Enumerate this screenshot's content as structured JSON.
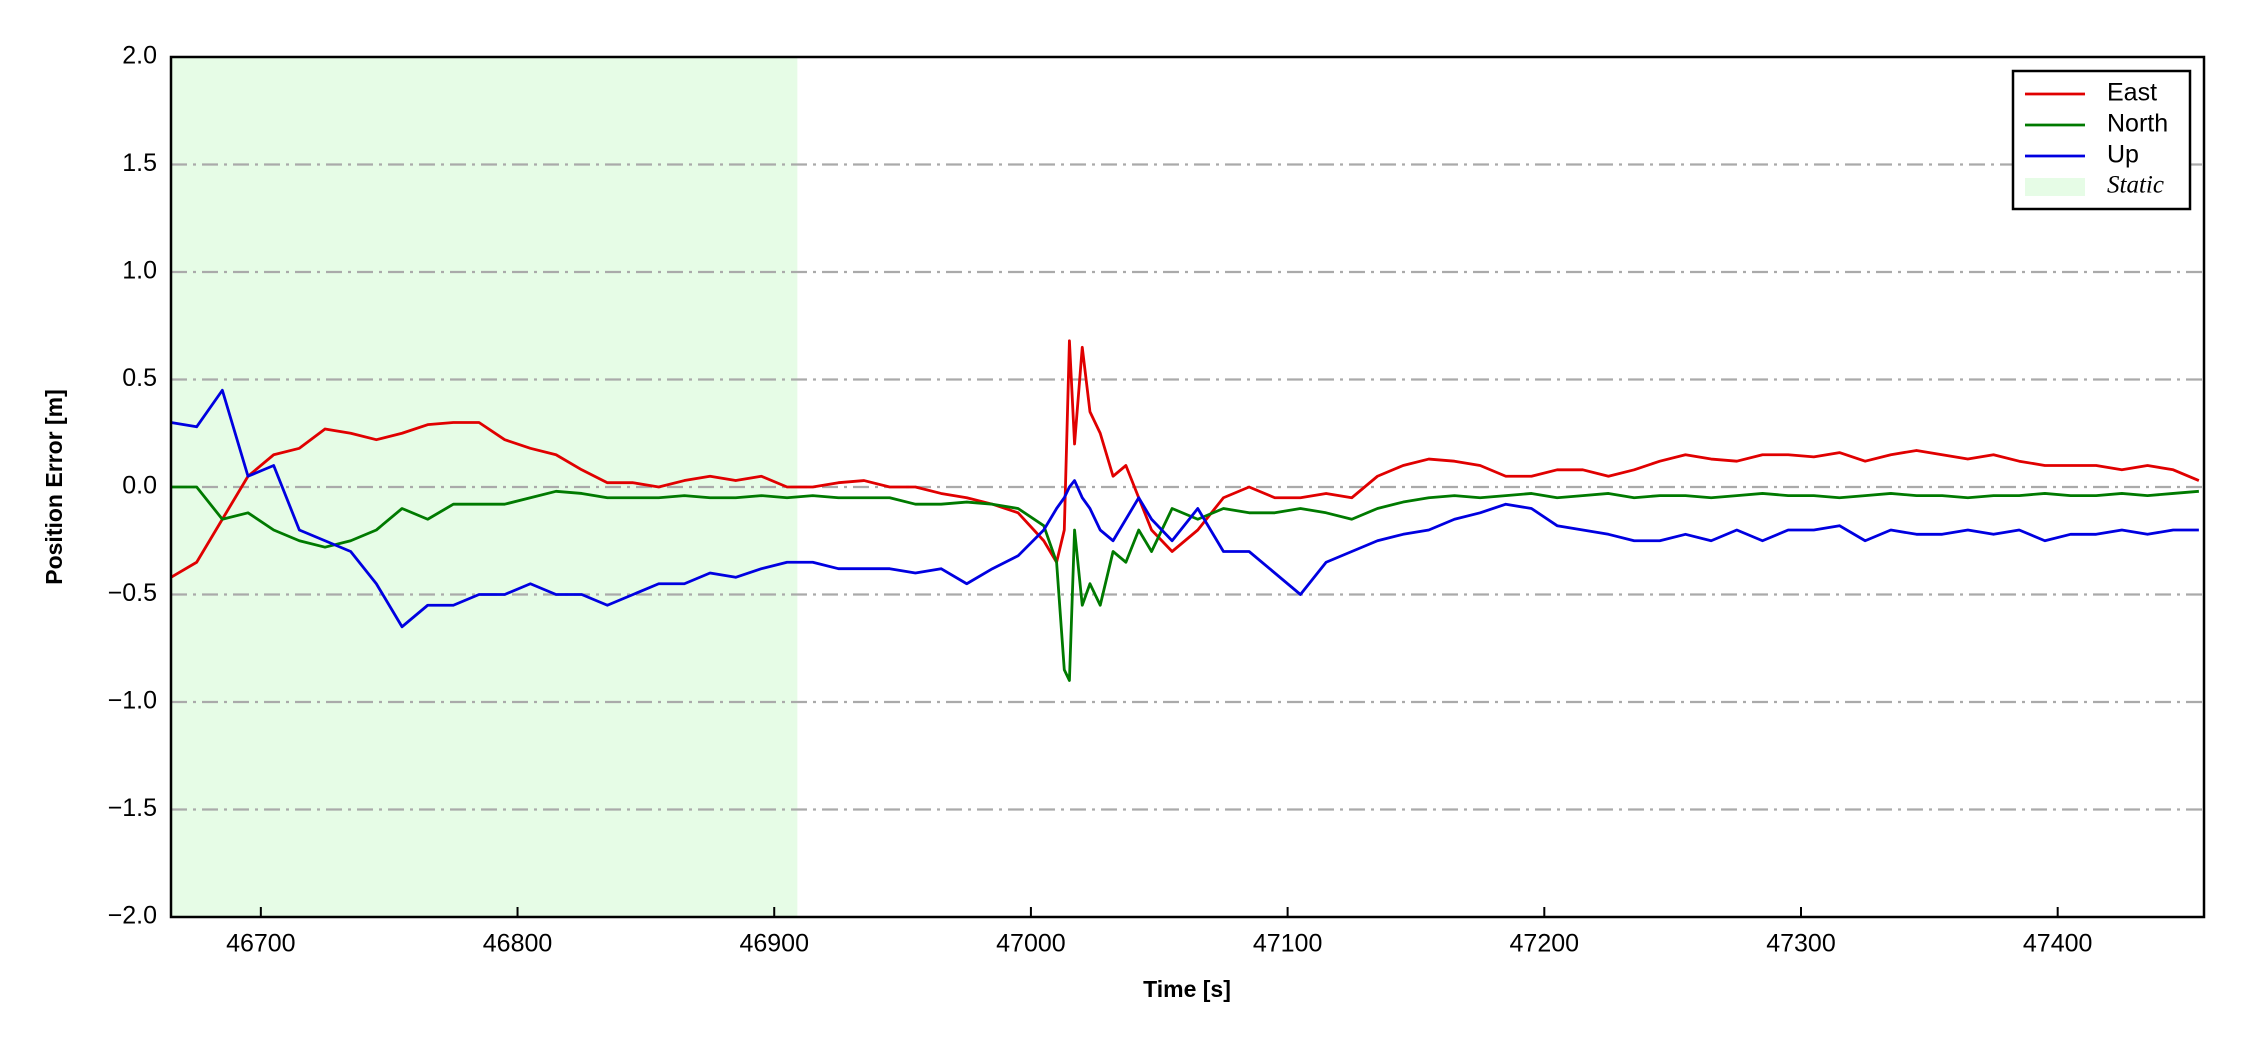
{
  "chart_data": {
    "type": "line",
    "xlabel": "Time [s]",
    "ylabel": "Position Error [m]",
    "xlim": [
      46665,
      47457
    ],
    "ylim": [
      -2.0,
      2.0
    ],
    "xticks": [
      46700,
      46800,
      46900,
      47000,
      47100,
      47200,
      47300,
      47400
    ],
    "yticks": [
      {
        "value": -2.0,
        "label": "−2.0"
      },
      {
        "value": -1.5,
        "label": "−1.5"
      },
      {
        "value": -1.0,
        "label": "−1.0"
      },
      {
        "value": -0.5,
        "label": "−0.5"
      },
      {
        "value": 0.0,
        "label": "0.0"
      },
      {
        "value": 0.5,
        "label": "0.5"
      },
      {
        "value": 1.0,
        "label": "1.0"
      },
      {
        "value": 1.5,
        "label": "1.5"
      },
      {
        "value": 2.0,
        "label": "2.0"
      }
    ],
    "grid": "y",
    "legend": "upper right",
    "span": {
      "name": "Static",
      "x0": 46665,
      "x1": 46909,
      "color": "#e6fce6"
    },
    "x": [
      46665,
      46675,
      46685,
      46695,
      46705,
      46715,
      46725,
      46735,
      46745,
      46755,
      46765,
      46775,
      46785,
      46795,
      46805,
      46815,
      46825,
      46835,
      46845,
      46855,
      46865,
      46875,
      46885,
      46895,
      46905,
      46915,
      46925,
      46935,
      46945,
      46955,
      46965,
      46975,
      46985,
      46995,
      47005,
      47010,
      47013,
      47015,
      47017,
      47020,
      47023,
      47027,
      47032,
      47037,
      47042,
      47047,
      47055,
      47065,
      47075,
      47085,
      47095,
      47105,
      47115,
      47125,
      47135,
      47145,
      47155,
      47165,
      47175,
      47185,
      47195,
      47205,
      47215,
      47225,
      47235,
      47245,
      47255,
      47265,
      47275,
      47285,
      47295,
      47305,
      47315,
      47325,
      47335,
      47345,
      47355,
      47365,
      47375,
      47385,
      47395,
      47405,
      47415,
      47425,
      47435,
      47445,
      47455
    ],
    "series": [
      {
        "name": "East",
        "color": "#e00000",
        "values": [
          -0.42,
          -0.35,
          -0.15,
          0.05,
          0.15,
          0.18,
          0.27,
          0.25,
          0.22,
          0.25,
          0.29,
          0.3,
          0.3,
          0.22,
          0.18,
          0.15,
          0.08,
          0.02,
          0.02,
          0.0,
          0.03,
          0.05,
          0.03,
          0.05,
          0.0,
          0.0,
          0.02,
          0.03,
          0.0,
          0.0,
          -0.03,
          -0.05,
          -0.08,
          -0.12,
          -0.25,
          -0.35,
          -0.2,
          0.68,
          0.2,
          0.65,
          0.35,
          0.25,
          0.05,
          0.1,
          -0.05,
          -0.2,
          -0.3,
          -0.2,
          -0.05,
          0.0,
          -0.05,
          -0.05,
          -0.03,
          -0.05,
          0.05,
          0.1,
          0.13,
          0.12,
          0.1,
          0.05,
          0.05,
          0.08,
          0.08,
          0.05,
          0.08,
          0.12,
          0.15,
          0.13,
          0.12,
          0.15,
          0.15,
          0.14,
          0.16,
          0.12,
          0.15,
          0.17,
          0.15,
          0.13,
          0.15,
          0.12,
          0.1,
          0.1,
          0.1,
          0.08,
          0.1,
          0.08,
          0.03
        ]
      },
      {
        "name": "North",
        "color": "#007a00",
        "values": [
          0.0,
          0.0,
          -0.15,
          -0.12,
          -0.2,
          -0.25,
          -0.28,
          -0.25,
          -0.2,
          -0.1,
          -0.15,
          -0.08,
          -0.08,
          -0.08,
          -0.05,
          -0.02,
          -0.03,
          -0.05,
          -0.05,
          -0.05,
          -0.04,
          -0.05,
          -0.05,
          -0.04,
          -0.05,
          -0.04,
          -0.05,
          -0.05,
          -0.05,
          -0.08,
          -0.08,
          -0.07,
          -0.08,
          -0.1,
          -0.18,
          -0.35,
          -0.85,
          -0.9,
          -0.2,
          -0.55,
          -0.45,
          -0.55,
          -0.3,
          -0.35,
          -0.2,
          -0.3,
          -0.1,
          -0.15,
          -0.1,
          -0.12,
          -0.12,
          -0.1,
          -0.12,
          -0.15,
          -0.1,
          -0.07,
          -0.05,
          -0.04,
          -0.05,
          -0.04,
          -0.03,
          -0.05,
          -0.04,
          -0.03,
          -0.05,
          -0.04,
          -0.04,
          -0.05,
          -0.04,
          -0.03,
          -0.04,
          -0.04,
          -0.05,
          -0.04,
          -0.03,
          -0.04,
          -0.04,
          -0.05,
          -0.04,
          -0.04,
          -0.03,
          -0.04,
          -0.04,
          -0.03,
          -0.04,
          -0.03,
          -0.02
        ]
      },
      {
        "name": "Up",
        "color": "#0000e0",
        "values": [
          0.3,
          0.28,
          0.45,
          0.05,
          0.1,
          -0.2,
          -0.25,
          -0.3,
          -0.45,
          -0.65,
          -0.55,
          -0.55,
          -0.5,
          -0.5,
          -0.45,
          -0.5,
          -0.5,
          -0.55,
          -0.5,
          -0.45,
          -0.45,
          -0.4,
          -0.42,
          -0.38,
          -0.35,
          -0.35,
          -0.38,
          -0.38,
          -0.38,
          -0.4,
          -0.38,
          -0.45,
          -0.38,
          -0.32,
          -0.2,
          -0.1,
          -0.05,
          0.0,
          0.03,
          -0.05,
          -0.1,
          -0.2,
          -0.25,
          -0.15,
          -0.05,
          -0.15,
          -0.25,
          -0.1,
          -0.3,
          -0.3,
          -0.4,
          -0.5,
          -0.35,
          -0.3,
          -0.25,
          -0.22,
          -0.2,
          -0.15,
          -0.12,
          -0.08,
          -0.1,
          -0.18,
          -0.2,
          -0.22,
          -0.25,
          -0.25,
          -0.22,
          -0.25,
          -0.2,
          -0.25,
          -0.2,
          -0.2,
          -0.18,
          -0.25,
          -0.2,
          -0.22,
          -0.22,
          -0.2,
          -0.22,
          -0.2,
          -0.25,
          -0.22,
          -0.22,
          -0.2,
          -0.22,
          -0.2,
          -0.2
        ]
      }
    ]
  }
}
